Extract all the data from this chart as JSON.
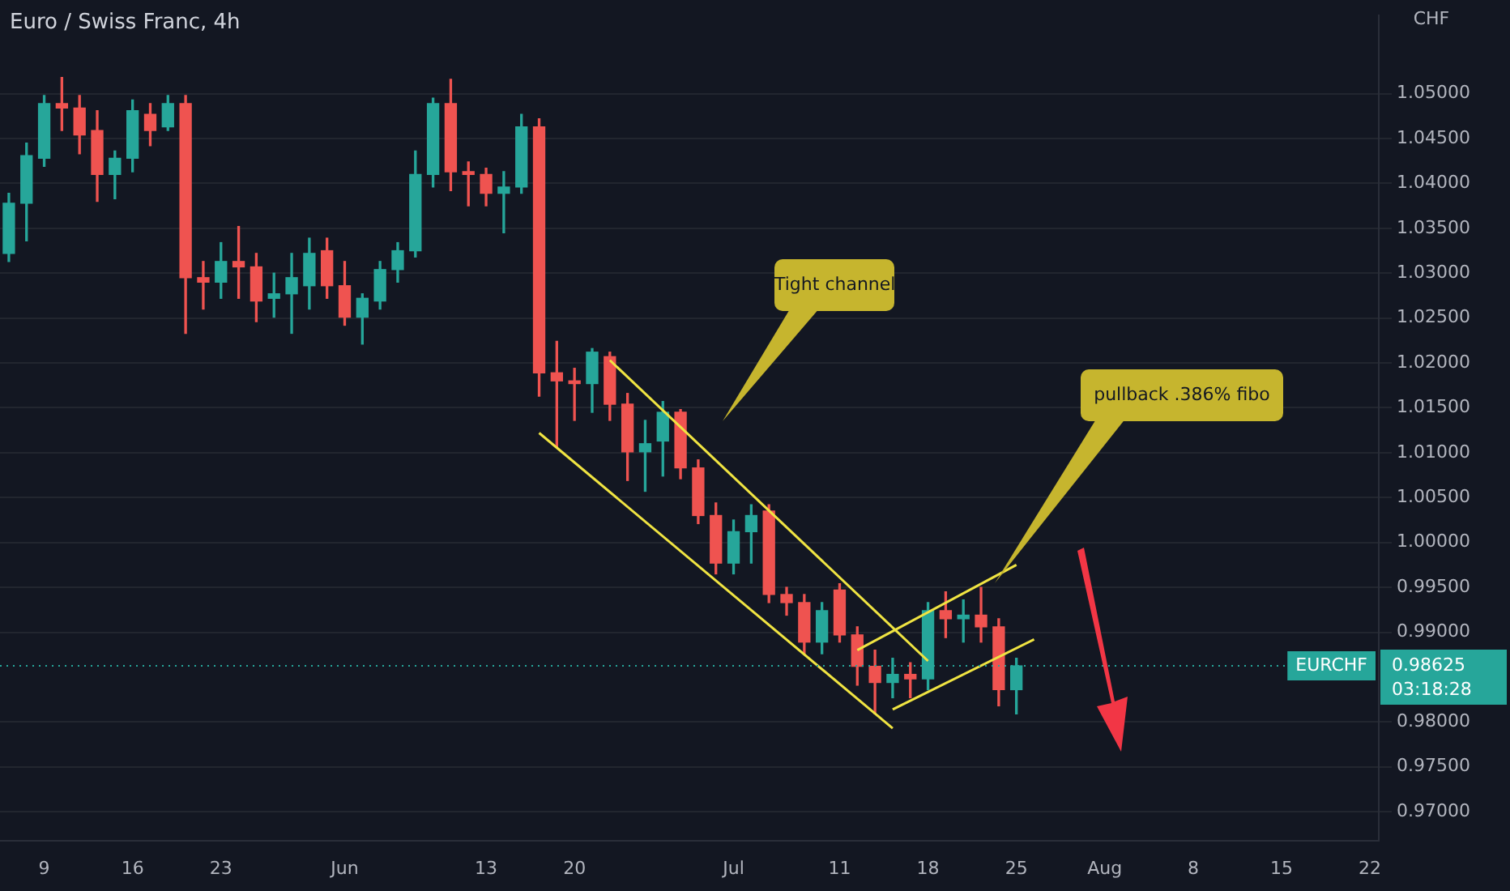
{
  "chart_data": {
    "type": "candlestick",
    "title": "Euro / Swiss Franc, 4h",
    "ylabel": "CHF",
    "categories": [
      null,
      null,
      "9",
      null,
      null,
      null,
      null,
      "16",
      null,
      null,
      null,
      null,
      "23",
      null,
      null,
      null,
      null,
      null,
      null,
      "Jun",
      null,
      null,
      null,
      null,
      null,
      null,
      null,
      "13",
      null,
      null,
      null,
      null,
      "20",
      null,
      null,
      null,
      null,
      null,
      null,
      null,
      null,
      "Jul",
      null,
      null,
      null,
      null,
      null,
      "11",
      null,
      null,
      null,
      null,
      "18",
      null,
      null,
      null,
      null,
      "25",
      null,
      null,
      null,
      null,
      "Aug",
      null,
      null,
      null,
      null,
      "8",
      null,
      null,
      null,
      null,
      "15",
      null,
      null,
      null,
      null,
      "22"
    ],
    "series": [
      {
        "ohlc": [
          [
            1.0322,
            1.0389,
            1.0313,
            1.0378
          ],
          [
            1.0378,
            1.0445,
            1.0336,
            1.0431
          ],
          [
            1.0428,
            1.0498,
            1.0419,
            1.0489
          ],
          [
            1.0489,
            1.0518,
            1.0459,
            1.0484
          ],
          [
            1.0484,
            1.0498,
            1.0433,
            1.0454
          ],
          [
            1.0459,
            1.0481,
            1.038,
            1.041
          ],
          [
            1.041,
            1.0436,
            1.0383,
            1.0428
          ],
          [
            1.0428,
            1.0493,
            1.0413,
            1.0481
          ],
          [
            1.0477,
            1.0489,
            1.0442,
            1.0459
          ],
          [
            1.0463,
            1.0498,
            1.0459,
            1.0489
          ],
          [
            1.0489,
            1.0498,
            1.0233,
            1.0295
          ],
          [
            1.0295,
            1.0313,
            1.026,
            1.029
          ],
          [
            1.029,
            1.0334,
            1.0272,
            1.0313
          ],
          [
            1.0313,
            1.0352,
            1.0272,
            1.0307
          ],
          [
            1.0307,
            1.0322,
            1.0246,
            1.0269
          ],
          [
            1.0272,
            1.03,
            1.0251,
            1.0277
          ],
          [
            1.0277,
            1.0322,
            1.0233,
            1.0295
          ],
          [
            1.0286,
            1.0339,
            1.026,
            1.0322
          ],
          [
            1.0325,
            1.0339,
            1.0272,
            1.0286
          ],
          [
            1.0286,
            1.0313,
            1.0242,
            1.0251
          ],
          [
            1.0251,
            1.0277,
            1.0221,
            1.0272
          ],
          [
            1.0269,
            1.0313,
            1.026,
            1.0304
          ],
          [
            1.0304,
            1.0334,
            1.029,
            1.0325
          ],
          [
            1.0325,
            1.0436,
            1.0318,
            1.041
          ],
          [
            1.041,
            1.0495,
            1.0396,
            1.0489
          ],
          [
            1.0489,
            1.0516,
            1.0392,
            1.0413
          ],
          [
            1.0413,
            1.0424,
            1.0375,
            1.041
          ],
          [
            1.041,
            1.0417,
            1.0375,
            1.0389
          ],
          [
            1.0389,
            1.0413,
            1.0345,
            1.0396
          ],
          [
            1.0396,
            1.0477,
            1.0389,
            1.0463
          ],
          [
            1.0463,
            1.0472,
            1.0163,
            1.0189
          ],
          [
            1.0189,
            1.0224,
            1.0106,
            1.018
          ],
          [
            1.018,
            1.0194,
            1.0136,
            1.0177
          ],
          [
            1.0177,
            1.0216,
            1.0145,
            1.0212
          ],
          [
            1.0207,
            1.0212,
            1.0136,
            1.0154
          ],
          [
            1.0154,
            1.0166,
            1.0069,
            1.0101
          ],
          [
            1.0101,
            1.0136,
            1.0057,
            1.011
          ],
          [
            1.0113,
            1.0157,
            1.0074,
            1.0145
          ],
          [
            1.0145,
            1.0148,
            1.0071,
            1.0083
          ],
          [
            1.0083,
            1.0092,
            1.0021,
            1.003
          ],
          [
            1.003,
            1.0044,
            0.9965,
            0.9977
          ],
          [
            0.9977,
            1.0025,
            0.9965,
            1.0012
          ],
          [
            1.0012,
            1.0042,
            0.9977,
            1.003
          ],
          [
            1.0035,
            1.0042,
            0.9933,
            0.9942
          ],
          [
            0.9942,
            0.995,
            0.9919,
            0.9933
          ],
          [
            0.9933,
            0.9942,
            0.9876,
            0.9889
          ],
          [
            0.9889,
            0.9933,
            0.9876,
            0.9924
          ],
          [
            0.9947,
            0.9954,
            0.9889,
            0.9897
          ],
          [
            0.9897,
            0.9906,
            0.9841,
            0.9862
          ],
          [
            0.9862,
            0.988,
            0.9809,
            0.9844
          ],
          [
            0.9844,
            0.9871,
            0.9827,
            0.9853
          ],
          [
            0.9853,
            0.9866,
            0.9827,
            0.9848
          ],
          [
            0.9848,
            0.9933,
            0.9836,
            0.9924
          ],
          [
            0.9924,
            0.9945,
            0.9894,
            0.9915
          ],
          [
            0.9915,
            0.9936,
            0.9889,
            0.9919
          ],
          [
            0.9919,
            0.995,
            0.9889,
            0.9906
          ],
          [
            0.9906,
            0.9915,
            0.9818,
            0.9836
          ],
          [
            0.9836,
            0.9871,
            0.9809,
            0.98625
          ],
          null,
          null,
          null,
          null,
          null,
          null,
          null,
          null,
          null,
          null,
          null,
          null,
          null,
          null,
          null,
          null,
          null,
          null,
          null,
          null
        ],
        "colors": [
          "#26a69a",
          "#26a69a",
          "#26a69a",
          "#ef5350",
          "#ef5350",
          "#ef5350",
          "#26a69a",
          "#26a69a",
          "#ef5350",
          "#26a69a",
          "#ef5350",
          "#ef5350",
          "#26a69a",
          "#ef5350",
          "#ef5350",
          "#26a69a",
          "#26a69a",
          "#26a69a",
          "#ef5350",
          "#ef5350",
          "#26a69a",
          "#26a69a",
          "#26a69a",
          "#26a69a",
          "#26a69a",
          "#ef5350",
          "#ef5350",
          "#ef5350",
          "#26a69a",
          "#26a69a",
          "#ef5350",
          "#ef5350",
          "#ef5350",
          "#26a69a",
          "#ef5350",
          "#ef5350",
          "#26a69a",
          "#26a69a",
          "#ef5350",
          "#ef5350",
          "#ef5350",
          "#26a69a",
          "#26a69a",
          "#ef5350",
          "#ef5350",
          "#ef5350",
          "#26a69a",
          "#ef5350",
          "#ef5350",
          "#ef5350",
          "#26a69a",
          "#ef5350",
          "#26a69a",
          "#ef5350",
          "#26a69a",
          "#ef5350",
          "#ef5350",
          "#26a69a",
          null,
          null,
          null,
          null,
          null,
          null,
          null,
          null,
          null,
          null,
          null,
          null,
          null,
          null,
          null,
          null,
          null,
          null,
          null,
          null
        ]
      },
      {
        "type": "line",
        "color": "#f0e442",
        "values": [
          null,
          null,
          null,
          null,
          null,
          null,
          null,
          null,
          null,
          null,
          null,
          null,
          null,
          null,
          null,
          null,
          null,
          null,
          null,
          null,
          null,
          null,
          null,
          null,
          null,
          null,
          null,
          null,
          null,
          null,
          null,
          null,
          null,
          null,
          1.0203,
          null,
          null,
          null,
          null,
          null,
          null,
          null,
          null,
          null,
          null,
          null,
          null,
          null,
          null,
          null,
          null,
          null,
          0.9868,
          null,
          null,
          null,
          null,
          null,
          null,
          null,
          null,
          null,
          null,
          null,
          null,
          null,
          null,
          null,
          null,
          null,
          null,
          null,
          null,
          null,
          null,
          null,
          null,
          null
        ]
      },
      {
        "type": "line",
        "color": "#f0e442",
        "values": [
          null,
          null,
          null,
          null,
          null,
          null,
          null,
          null,
          null,
          null,
          null,
          null,
          null,
          null,
          null,
          null,
          null,
          null,
          null,
          null,
          null,
          null,
          null,
          null,
          null,
          null,
          null,
          null,
          null,
          null,
          1.0122,
          null,
          null,
          null,
          null,
          null,
          null,
          null,
          null,
          null,
          null,
          null,
          null,
          null,
          null,
          null,
          null,
          null,
          null,
          null,
          0.9793,
          null,
          null,
          null,
          null,
          null,
          null,
          null,
          null,
          null,
          null,
          null,
          null,
          null,
          null,
          null,
          null,
          null,
          null,
          null,
          null,
          null,
          null,
          null,
          null,
          null,
          null,
          null
        ]
      },
      {
        "type": "line",
        "color": "#f0e442",
        "values": [
          null,
          null,
          null,
          null,
          null,
          null,
          null,
          null,
          null,
          null,
          null,
          null,
          null,
          null,
          null,
          null,
          null,
          null,
          null,
          null,
          null,
          null,
          null,
          null,
          null,
          null,
          null,
          null,
          null,
          null,
          null,
          null,
          null,
          null,
          null,
          null,
          null,
          null,
          null,
          null,
          null,
          null,
          null,
          null,
          null,
          null,
          null,
          null,
          0.988,
          null,
          null,
          null,
          null,
          null,
          null,
          null,
          null,
          0.9975,
          null,
          null,
          null,
          null,
          null,
          null,
          null,
          null,
          null,
          null,
          null,
          null,
          null,
          null,
          null,
          null,
          null,
          null,
          null,
          null
        ]
      },
      {
        "type": "line",
        "color": "#f0e442",
        "values": [
          null,
          null,
          null,
          null,
          null,
          null,
          null,
          null,
          null,
          null,
          null,
          null,
          null,
          null,
          null,
          null,
          null,
          null,
          null,
          null,
          null,
          null,
          null,
          null,
          null,
          null,
          null,
          null,
          null,
          null,
          null,
          null,
          null,
          null,
          null,
          null,
          null,
          null,
          null,
          null,
          null,
          null,
          null,
          null,
          null,
          null,
          null,
          null,
          null,
          null,
          0.9814,
          null,
          null,
          null,
          null,
          null,
          null,
          null,
          0.9892,
          null,
          null,
          null,
          null,
          null,
          null,
          null,
          null,
          null,
          null,
          null,
          null,
          null,
          null,
          null,
          null,
          null,
          null,
          null
        ]
      }
    ],
    "ylim": [
      0.9668,
      1.0587
    ],
    "yticks": [
      {
        "value": 0.97,
        "label": "0.97000"
      },
      {
        "value": 0.975,
        "label": "0.97500"
      },
      {
        "value": 0.98,
        "label": "0.98000"
      },
      {
        "value": 0.99,
        "label": "0.99000"
      },
      {
        "value": 0.995,
        "label": "0.99500"
      },
      {
        "value": 1.0,
        "label": "1.00000"
      },
      {
        "value": 1.005,
        "label": "1.00500"
      },
      {
        "value": 1.01,
        "label": "1.01000"
      },
      {
        "value": 1.015,
        "label": "1.01500"
      },
      {
        "value": 1.02,
        "label": "1.02000"
      },
      {
        "value": 1.025,
        "label": "1.02500"
      },
      {
        "value": 1.03,
        "label": "1.03000"
      },
      {
        "value": 1.035,
        "label": "1.03500"
      },
      {
        "value": 1.04,
        "label": "1.04000"
      },
      {
        "value": 1.045,
        "label": "1.04500"
      },
      {
        "value": 1.05,
        "label": "1.05000"
      }
    ],
    "grid": "y",
    "legend": false,
    "ref_lines": [
      {
        "axis": "y",
        "value": 0.98625,
        "label": "EURCHF",
        "color": "#26a69a",
        "line_style": "dotted"
      }
    ],
    "annotations": [
      "Tight channel",
      "pullback .386% fibo",
      "0.98625",
      "03:18:28"
    ]
  }
}
